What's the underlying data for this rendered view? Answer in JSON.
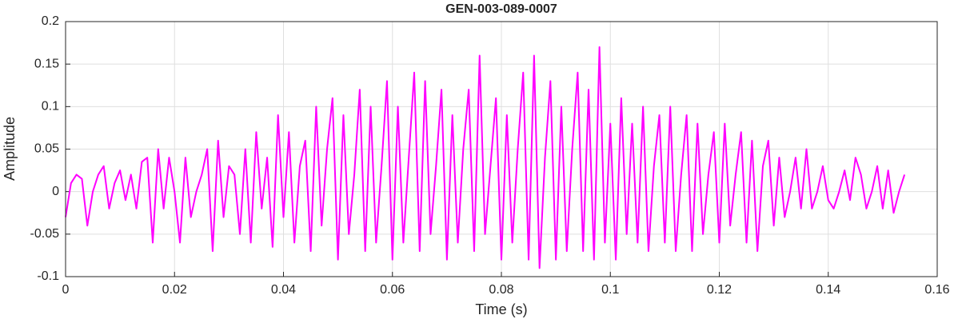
{
  "chart_data": {
    "type": "line",
    "title": "GEN-003-089-0007",
    "x_label": "Time (s)",
    "y_label": "Amplitude",
    "x": [
      0,
      0.001,
      0.002,
      0.003,
      0.004,
      0.005,
      0.006,
      0.007,
      0.008,
      0.009,
      0.01,
      0.011,
      0.012,
      0.013,
      0.014,
      0.015,
      0.016,
      0.017,
      0.018,
      0.019,
      0.02,
      0.021,
      0.022,
      0.023,
      0.024,
      0.025,
      0.026,
      0.027,
      0.028,
      0.029,
      0.03,
      0.031,
      0.032,
      0.033,
      0.034,
      0.035,
      0.036,
      0.037,
      0.038,
      0.039,
      0.04,
      0.041,
      0.042,
      0.043,
      0.044,
      0.045,
      0.046,
      0.047,
      0.048,
      0.049,
      0.05,
      0.051,
      0.052,
      0.053,
      0.054,
      0.055,
      0.056,
      0.057,
      0.058,
      0.059,
      0.06,
      0.061,
      0.062,
      0.063,
      0.064,
      0.065,
      0.066,
      0.067,
      0.068,
      0.069,
      0.07,
      0.071,
      0.072,
      0.073,
      0.074,
      0.075,
      0.076,
      0.077,
      0.078,
      0.079,
      0.08,
      0.081,
      0.082,
      0.083,
      0.084,
      0.085,
      0.086,
      0.087,
      0.088,
      0.089,
      0.09,
      0.091,
      0.092,
      0.093,
      0.094,
      0.095,
      0.096,
      0.097,
      0.098,
      0.099,
      0.1,
      0.101,
      0.102,
      0.103,
      0.104,
      0.105,
      0.106,
      0.107,
      0.108,
      0.109,
      0.11,
      0.111,
      0.112,
      0.113,
      0.114,
      0.115,
      0.116,
      0.117,
      0.118,
      0.119,
      0.12,
      0.121,
      0.122,
      0.123,
      0.124,
      0.125,
      0.126,
      0.127,
      0.128,
      0.129,
      0.13,
      0.131,
      0.132,
      0.133,
      0.134,
      0.135,
      0.136,
      0.137,
      0.138,
      0.139,
      0.14,
      0.141,
      0.142,
      0.143,
      0.144,
      0.145,
      0.146,
      0.147,
      0.148,
      0.149,
      0.15,
      0.151,
      0.152,
      0.153,
      0.154
    ],
    "series": [
      {
        "color": "#ff00ff",
        "values": [
          -0.03,
          0.01,
          0.02,
          0.015,
          -0.04,
          0.0,
          0.02,
          0.03,
          -0.02,
          0.01,
          0.025,
          -0.01,
          0.02,
          -0.02,
          0.035,
          0.04,
          -0.06,
          0.05,
          -0.02,
          0.04,
          0.0,
          -0.06,
          0.04,
          -0.03,
          0.0,
          0.02,
          0.05,
          -0.07,
          0.06,
          -0.03,
          0.03,
          0.02,
          -0.05,
          0.05,
          -0.06,
          0.07,
          -0.02,
          0.04,
          -0.065,
          0.09,
          -0.03,
          0.07,
          -0.06,
          0.03,
          0.06,
          -0.07,
          0.1,
          -0.04,
          0.05,
          0.11,
          -0.08,
          0.09,
          -0.05,
          0.02,
          0.12,
          -0.07,
          0.1,
          -0.06,
          0.03,
          0.13,
          -0.08,
          0.1,
          -0.06,
          0.04,
          0.14,
          -0.07,
          0.13,
          -0.05,
          0.03,
          0.12,
          -0.08,
          0.09,
          -0.06,
          0.05,
          0.12,
          -0.07,
          0.16,
          -0.05,
          0.03,
          0.11,
          -0.08,
          0.09,
          -0.06,
          0.05,
          0.14,
          -0.08,
          0.16,
          -0.09,
          0.04,
          0.13,
          -0.08,
          0.1,
          -0.07,
          0.05,
          0.14,
          -0.07,
          0.12,
          -0.08,
          0.17,
          -0.06,
          0.08,
          -0.08,
          0.11,
          -0.05,
          0.08,
          -0.06,
          0.1,
          -0.07,
          0.03,
          0.09,
          -0.06,
          0.1,
          -0.07,
          0.02,
          0.09,
          -0.07,
          0.08,
          -0.05,
          0.02,
          0.07,
          -0.06,
          0.08,
          -0.04,
          0.02,
          0.07,
          -0.06,
          0.06,
          -0.07,
          0.03,
          0.06,
          -0.04,
          0.04,
          -0.03,
          0.0,
          0.04,
          -0.02,
          0.05,
          -0.02,
          0.0,
          0.03,
          -0.01,
          -0.02,
          0.0,
          0.025,
          -0.01,
          0.04,
          0.02,
          -0.02,
          0.0,
          0.03,
          -0.02,
          0.025,
          -0.025,
          0.0,
          0.02
        ]
      }
    ],
    "xlim": [
      0,
      0.16
    ],
    "xticks": [
      0,
      0.02,
      0.04,
      0.06,
      0.08,
      0.1,
      0.12,
      0.14,
      0.16
    ],
    "ylim": [
      -0.1,
      0.2
    ],
    "yticks": [
      -0.1,
      -0.05,
      0,
      0.05,
      0.1,
      0.15,
      0.2
    ],
    "grid": true
  }
}
